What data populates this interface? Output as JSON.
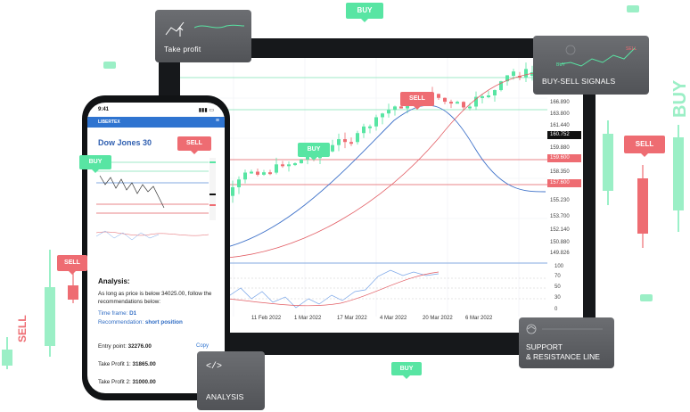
{
  "tablet": {
    "price_labels": [
      "166.890",
      "163.800",
      "161.440",
      "160.752",
      "159.880",
      "159.600",
      "158.350",
      "157.600",
      "155.230",
      "153.700",
      "152.140",
      "150.880",
      "149.826"
    ],
    "osc_labels": [
      "100",
      "70",
      "50",
      "30",
      "0"
    ],
    "date_labels": [
      "11 Feb 2022",
      "1 Mar 2022",
      "17 Mar 2022",
      "4 Mar 2022",
      "20 Mar 2022",
      "6 Mar 2022"
    ],
    "sell_tag": "SELL",
    "buy_tag": "BUY"
  },
  "phone": {
    "time": "9:41",
    "brand": "LIBERTEX",
    "title": "Dow Jones 30",
    "sell_tag": "SELL",
    "buy_tag": "BUY",
    "analysis_title": "Analysis:",
    "analysis_text": "As long as price is below 34025.00, follow the recommendations below:",
    "timeframe_label": "Time frame:",
    "timeframe_value": "D1",
    "recommendation_label": "Recommendation:",
    "recommendation_value": "short position",
    "entry_label": "Entry point:",
    "entry_value": "32276.00",
    "tp1_label": "Take Profit 1:",
    "tp1_value": "31865.00",
    "tp2_label": "Take Profit 2:",
    "tp2_value": "31000.00",
    "copy_label": "Copy"
  },
  "cards": {
    "take_profit": "Take profit",
    "buy_sell": "BUY-SELL SIGNALS",
    "buy_sell_sell": "SELL",
    "buy_sell_buy": "BUY",
    "support_line1": "SUPPORT",
    "support_line2": "& RESISTANCE LINE",
    "analysis": "ANALYSIS"
  },
  "floating": {
    "buy_top": "BUY",
    "buy_bottom": "BUY",
    "sell_right": "SELL",
    "sell_left": "SELL",
    "vertical_buy": "BUY",
    "vertical_sell": "SELL"
  },
  "colors": {
    "green": "#58e5a3",
    "red": "#ee6c72",
    "blue": "#2f74d0"
  }
}
